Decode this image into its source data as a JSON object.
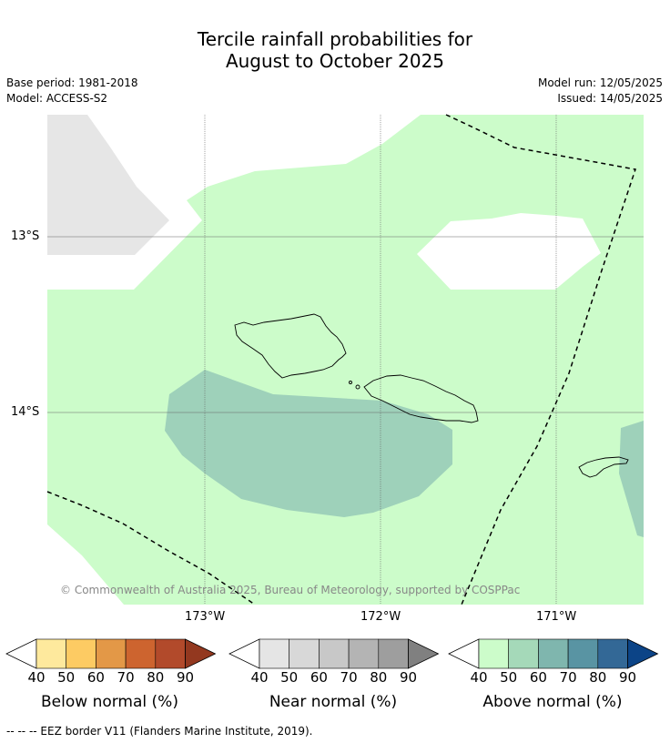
{
  "title_line1": "Tercile rainfall probabilities for",
  "title_line2": "August to October 2025",
  "meta": {
    "base_period": "Base period: 1981-2018",
    "model": "Model: ACCESS-S2",
    "model_run": "Model run: 12/05/2025",
    "issued": "Issued: 14/05/2025"
  },
  "axes": {
    "lat_labels": [
      "13°S",
      "14°S"
    ],
    "lon_labels": [
      "173°W",
      "172°W",
      "171°W"
    ]
  },
  "copyright": "© Commonwealth of Australia 2025, Bureau of Meteorology, supported by COSPPac",
  "legends": [
    {
      "title": "Below normal (%)",
      "ticks": [
        "40",
        "50",
        "60",
        "70",
        "80",
        "90"
      ],
      "colors": [
        "#ffffff",
        "#fee99d",
        "#fdcb63",
        "#e39847",
        "#cd642f",
        "#b24a2b",
        "#93381f"
      ]
    },
    {
      "title": "Near normal (%)",
      "ticks": [
        "40",
        "50",
        "60",
        "70",
        "80",
        "90"
      ],
      "colors": [
        "#ffffff",
        "#e5e5e5",
        "#d8d8d8",
        "#c8c8c8",
        "#b4b4b4",
        "#9e9e9e",
        "#808080"
      ]
    },
    {
      "title": "Above normal (%)",
      "ticks": [
        "40",
        "50",
        "60",
        "70",
        "80",
        "90"
      ],
      "colors": [
        "#ffffff",
        "#ccfcca",
        "#a5d9b9",
        "#7fb6ae",
        "#5994a3",
        "#336896",
        "#0c4487"
      ]
    }
  ],
  "footer": "--  --  -- EEZ border V11 (Flanders Marine Institute, 2019).",
  "map_colors": {
    "above_40_50": "#ccfcca",
    "above_50_60": "#9ed1ba",
    "near_40_50": "#e6e6e6",
    "background": "#ffffff"
  }
}
